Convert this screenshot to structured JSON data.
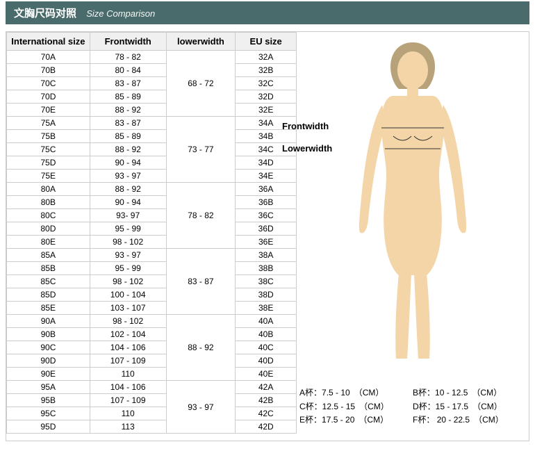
{
  "header": {
    "title_cn": "文胸尺码对照",
    "title_en": "Size Comparison"
  },
  "columns": {
    "intl": "International size",
    "frontwidth": "Frontwidth",
    "lowerwidth": "lowerwidth",
    "eu": "EU size"
  },
  "groups": [
    {
      "lower": "68 - 72",
      "rows": [
        {
          "intl": "70A",
          "fw": "78 - 82",
          "eu": "32A"
        },
        {
          "intl": "70B",
          "fw": "80 - 84",
          "eu": "32B"
        },
        {
          "intl": "70C",
          "fw": "83 - 87",
          "eu": "32C"
        },
        {
          "intl": "70D",
          "fw": "85 - 89",
          "eu": "32D"
        },
        {
          "intl": "70E",
          "fw": "88 - 92",
          "eu": "32E"
        }
      ]
    },
    {
      "lower": "73 - 77",
      "rows": [
        {
          "intl": "75A",
          "fw": "83 - 87",
          "eu": "34A"
        },
        {
          "intl": "75B",
          "fw": "85 - 89",
          "eu": "34B"
        },
        {
          "intl": "75C",
          "fw": "88 - 92",
          "eu": "34C"
        },
        {
          "intl": "75D",
          "fw": "90 - 94",
          "eu": "34D"
        },
        {
          "intl": "75E",
          "fw": "93 - 97",
          "eu": "34E"
        }
      ]
    },
    {
      "lower": "78 - 82",
      "rows": [
        {
          "intl": "80A",
          "fw": "88 - 92",
          "eu": "36A"
        },
        {
          "intl": "80B",
          "fw": "90 - 94",
          "eu": "36B"
        },
        {
          "intl": "80C",
          "fw": "93- 97",
          "eu": "36C"
        },
        {
          "intl": "80D",
          "fw": "95 - 99",
          "eu": "36D"
        },
        {
          "intl": "80E",
          "fw": "98 - 102",
          "eu": "36E"
        }
      ]
    },
    {
      "lower": "83 - 87",
      "rows": [
        {
          "intl": "85A",
          "fw": "93 - 97",
          "eu": "38A"
        },
        {
          "intl": "85B",
          "fw": "95 - 99",
          "eu": "38B"
        },
        {
          "intl": "85C",
          "fw": "98 - 102",
          "eu": "38C"
        },
        {
          "intl": "85D",
          "fw": "100 - 104",
          "eu": "38D"
        },
        {
          "intl": "85E",
          "fw": "103 - 107",
          "eu": "38E"
        }
      ]
    },
    {
      "lower": "88 - 92",
      "rows": [
        {
          "intl": "90A",
          "fw": "98 - 102",
          "eu": "40A"
        },
        {
          "intl": "90B",
          "fw": "102 - 104",
          "eu": "40B"
        },
        {
          "intl": "90C",
          "fw": "104 - 106",
          "eu": "40C"
        },
        {
          "intl": "90D",
          "fw": "107 - 109",
          "eu": "40D"
        },
        {
          "intl": "90E",
          "fw": "110",
          "eu": "40E"
        }
      ]
    },
    {
      "lower": "93 - 97",
      "rows": [
        {
          "intl": "95A",
          "fw": "104 - 106",
          "eu": "42A"
        },
        {
          "intl": "95B",
          "fw": "107 - 109",
          "eu": "42B"
        },
        {
          "intl": "95C",
          "fw": "110",
          "eu": "42C"
        },
        {
          "intl": "95D",
          "fw": "113",
          "eu": "42D"
        }
      ]
    }
  ],
  "figure": {
    "label_front": "Frontwidth",
    "label_lower": "Lowerwidth",
    "skin_color": "#f3d5a8",
    "hair_color": "#b8a27a"
  },
  "cups": [
    {
      "k": "A杯：",
      "v": "7.5 - 10",
      "u": "（CM）"
    },
    {
      "k": "B杯：",
      "v": "10 - 12.5",
      "u": "（CM）"
    },
    {
      "k": "C杯：",
      "v": "12.5 - 15",
      "u": "（CM）"
    },
    {
      "k": "D杯：",
      "v": "15 - 17.5",
      "u": "（CM）"
    },
    {
      "k": "E杯：",
      "v": "17.5 - 20",
      "u": "（CM）"
    },
    {
      "k": "F杯：",
      "v": "20 - 22.5",
      "u": "（CM）"
    }
  ],
  "colors": {
    "header_bg": "#4a6b6b",
    "border": "#cccccc",
    "th_bg": "#f0f0f0"
  }
}
